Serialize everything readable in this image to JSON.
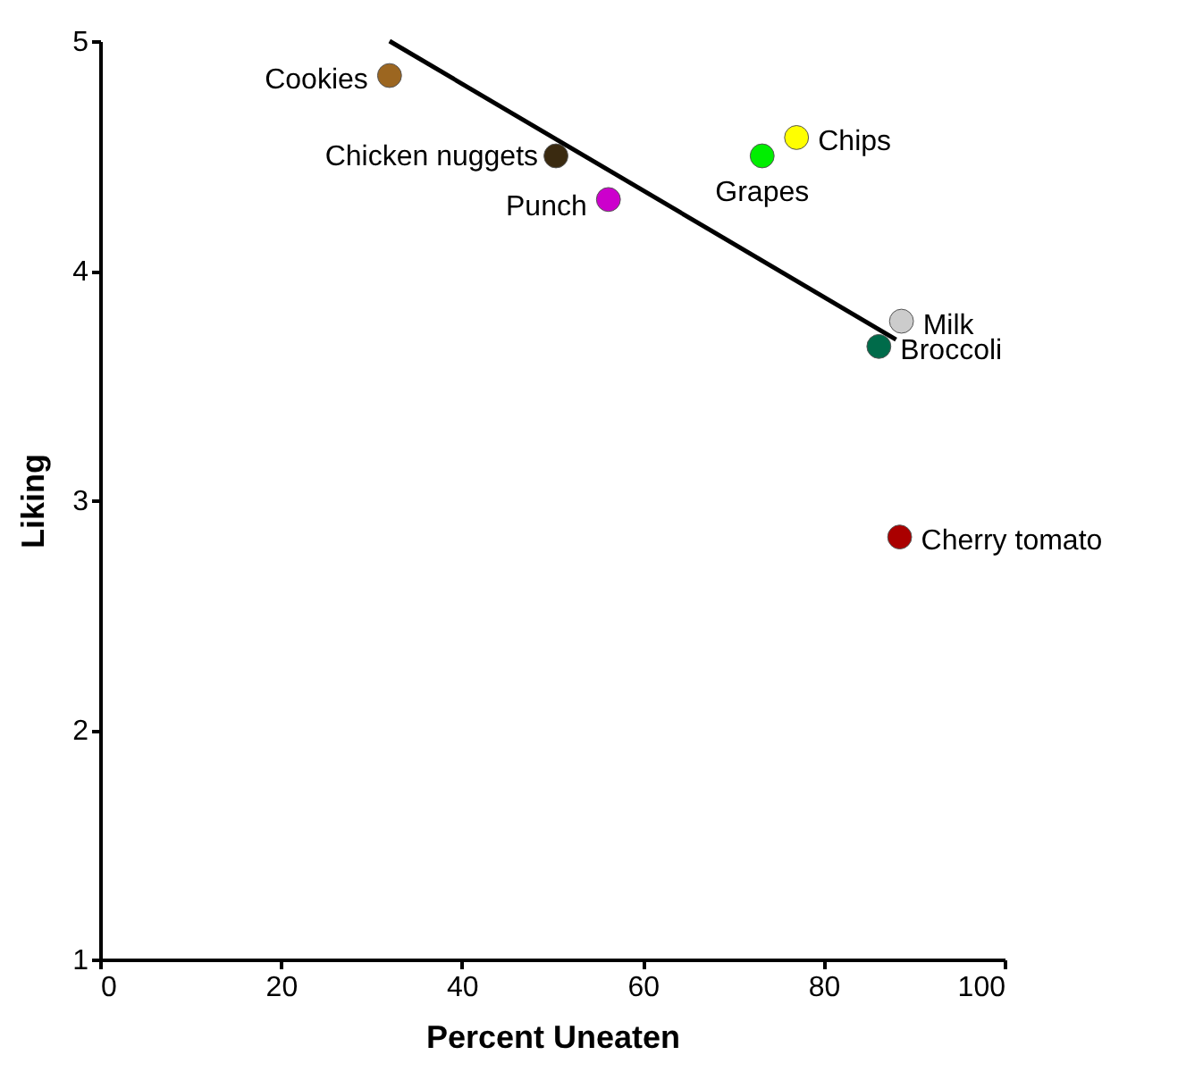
{
  "chart_data": {
    "type": "scatter",
    "xlabel": "Percent Uneaten",
    "ylabel": "Liking",
    "xlim": [
      0,
      100
    ],
    "xticks": [
      0,
      20,
      40,
      60,
      80,
      100
    ],
    "ylim": [
      1,
      5
    ],
    "yticks": [
      1,
      2,
      3,
      4,
      5
    ],
    "grid": false,
    "marker": "circle",
    "series": [
      {
        "name": "Cookies",
        "color": "#9c6620",
        "x": [
          32.0
        ],
        "values": [
          4.85
        ]
      },
      {
        "name": "Chicken nuggets",
        "color": "#3a2a10",
        "x": [
          50.4
        ],
        "values": [
          4.5
        ]
      },
      {
        "name": "Punch",
        "color": "#cc00cc",
        "x": [
          56.2
        ],
        "values": [
          4.31
        ]
      },
      {
        "name": "Grapes",
        "color": "#00ee00",
        "x": [
          73.2
        ],
        "values": [
          4.5
        ]
      },
      {
        "name": "Chips",
        "color": "#ffff00",
        "x": [
          77.0
        ],
        "values": [
          4.58
        ]
      },
      {
        "name": "Milk",
        "color": "#cccccc",
        "x": [
          88.6
        ],
        "values": [
          3.78
        ]
      },
      {
        "name": "Broccoli",
        "color": "#006b4a",
        "x": [
          86.1
        ],
        "values": [
          3.67
        ]
      },
      {
        "name": "Cherry tomato",
        "color": "#aa0000",
        "x": [
          88.4
        ],
        "values": [
          2.84
        ]
      },
      {
        "type": "line",
        "marker": "none",
        "color": "#000000",
        "x": [
          32.0,
          88.0
        ],
        "values": [
          5.0,
          3.7
        ]
      }
    ]
  }
}
